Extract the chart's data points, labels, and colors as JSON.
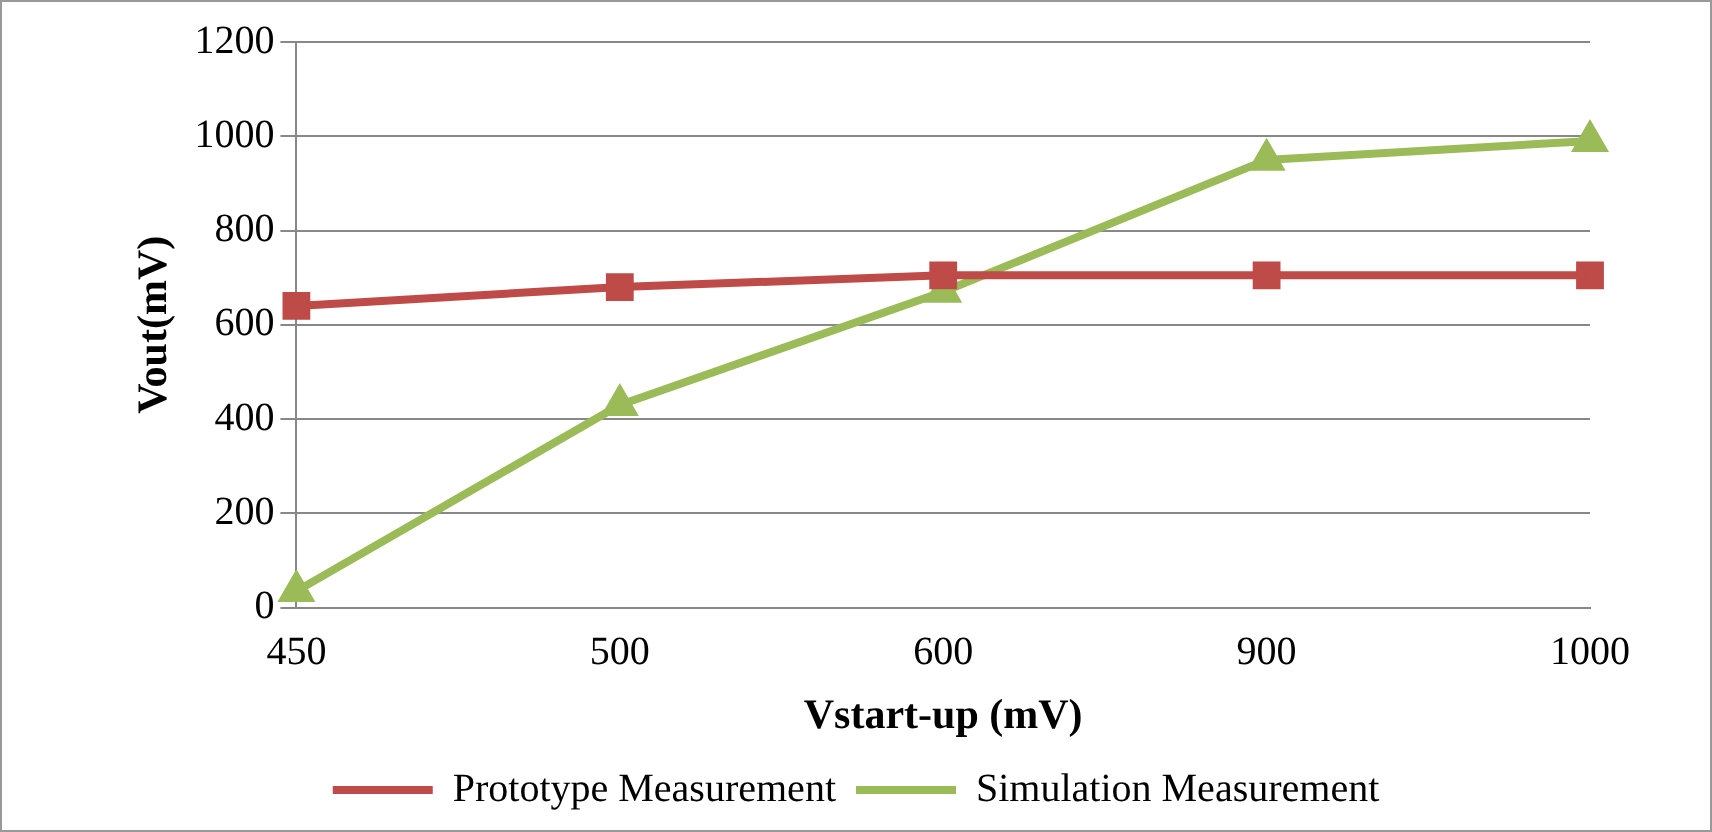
{
  "chart_data": {
    "type": "line",
    "xlabel": "Vstart-up (mV)",
    "ylabel": "Vout(mV)",
    "categories": [
      "450",
      "500",
      "600",
      "900",
      "1000"
    ],
    "series": [
      {
        "name": "Prototype Measurement",
        "color": "#be4b48",
        "marker": "square",
        "values": [
          640,
          680,
          705,
          705,
          705
        ]
      },
      {
        "name": "Simulation Measurement",
        "color": "#9bbb59",
        "marker": "triangle",
        "values": [
          35,
          430,
          670,
          950,
          990
        ]
      }
    ],
    "ylim": [
      0,
      1200
    ],
    "yticks": [
      0,
      200,
      400,
      600,
      800,
      1000,
      1200
    ],
    "grid": "y",
    "legend": "bottom",
    "line_style": "solid"
  }
}
